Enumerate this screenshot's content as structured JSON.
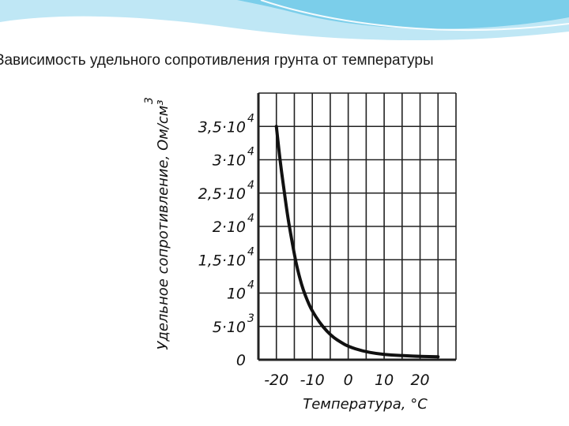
{
  "slide": {
    "title": "Зависимость удельного сопротивления грунта от температуры"
  },
  "colors": {
    "header_light": "#bfe7f5",
    "header_mid": "#6ec9e8",
    "grid": "#222222",
    "curve": "#111111"
  },
  "chart_data": {
    "type": "line",
    "title": "",
    "xlabel": "Температура, °С",
    "ylabel": "Удельное сопротивление, Ом/см³",
    "ylabel_sup": "3",
    "xlim": [
      -25,
      30
    ],
    "ylim": [
      0,
      40000
    ],
    "grid": true,
    "x_ticks": [
      {
        "value": -20,
        "label": "-20"
      },
      {
        "value": -10,
        "label": "-10"
      },
      {
        "value": 0,
        "label": "0"
      },
      {
        "value": 10,
        "label": "10"
      },
      {
        "value": 20,
        "label": "20"
      }
    ],
    "y_ticks": [
      {
        "value": 0,
        "base": "0",
        "exp": ""
      },
      {
        "value": 5000,
        "base": "5·10",
        "exp": "3"
      },
      {
        "value": 10000,
        "base": "10",
        "exp": "4"
      },
      {
        "value": 15000,
        "base": "1,5·10",
        "exp": "4"
      },
      {
        "value": 20000,
        "base": "2·10",
        "exp": "4"
      },
      {
        "value": 25000,
        "base": "2,5·10",
        "exp": "4"
      },
      {
        "value": 30000,
        "base": "3·10",
        "exp": "4"
      },
      {
        "value": 35000,
        "base": "3,5·10",
        "exp": "4"
      }
    ],
    "series": [
      {
        "x": [
          -20,
          -19,
          -18,
          -17,
          -16,
          -15,
          -14,
          -13,
          -12,
          -11,
          -10,
          -8,
          -6,
          -4,
          -2,
          0,
          4,
          8,
          12,
          16,
          20,
          25
        ],
        "y": [
          35000,
          30000,
          26000,
          22000,
          18800,
          15800,
          13300,
          11300,
          9700,
          8400,
          7300,
          5600,
          4300,
          3300,
          2600,
          2000,
          1300,
          900,
          700,
          600,
          500,
          450
        ]
      }
    ]
  }
}
